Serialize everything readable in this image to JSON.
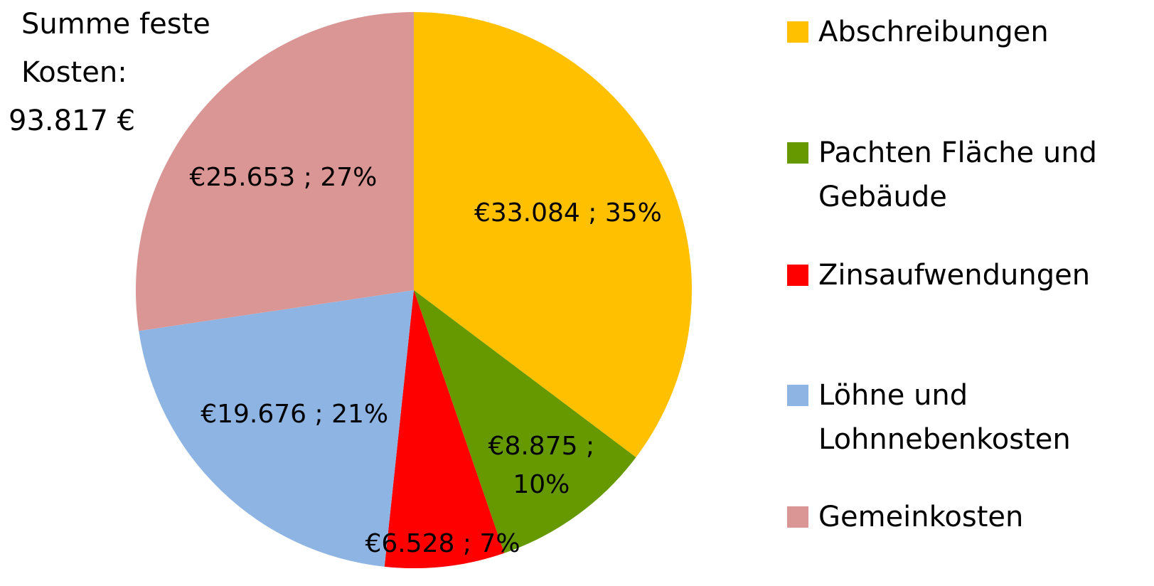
{
  "chart_data": {
    "type": "pie",
    "annotation": [
      "Summe feste",
      "Kosten:",
      "93.817 €"
    ],
    "categories": [
      "Abschreibungen",
      "Pachten Fläche und Gebäude",
      "Zinsaufwendungen",
      "Löhne und Lohnnebenkosten",
      "Gemeinkosten"
    ],
    "values": [
      33084,
      8875,
      6528,
      19676,
      25653
    ],
    "value_labels": [
      "€33.084 ; 35%",
      "€8.875 ; 10%",
      "€6.528 ; 7%",
      "€19.676 ; 21%",
      "€25.653 ; 27%"
    ],
    "colors": [
      "#ffc000",
      "#669900",
      "#ff0000",
      "#8eb4e3",
      "#d99694"
    ],
    "legend": "right"
  }
}
